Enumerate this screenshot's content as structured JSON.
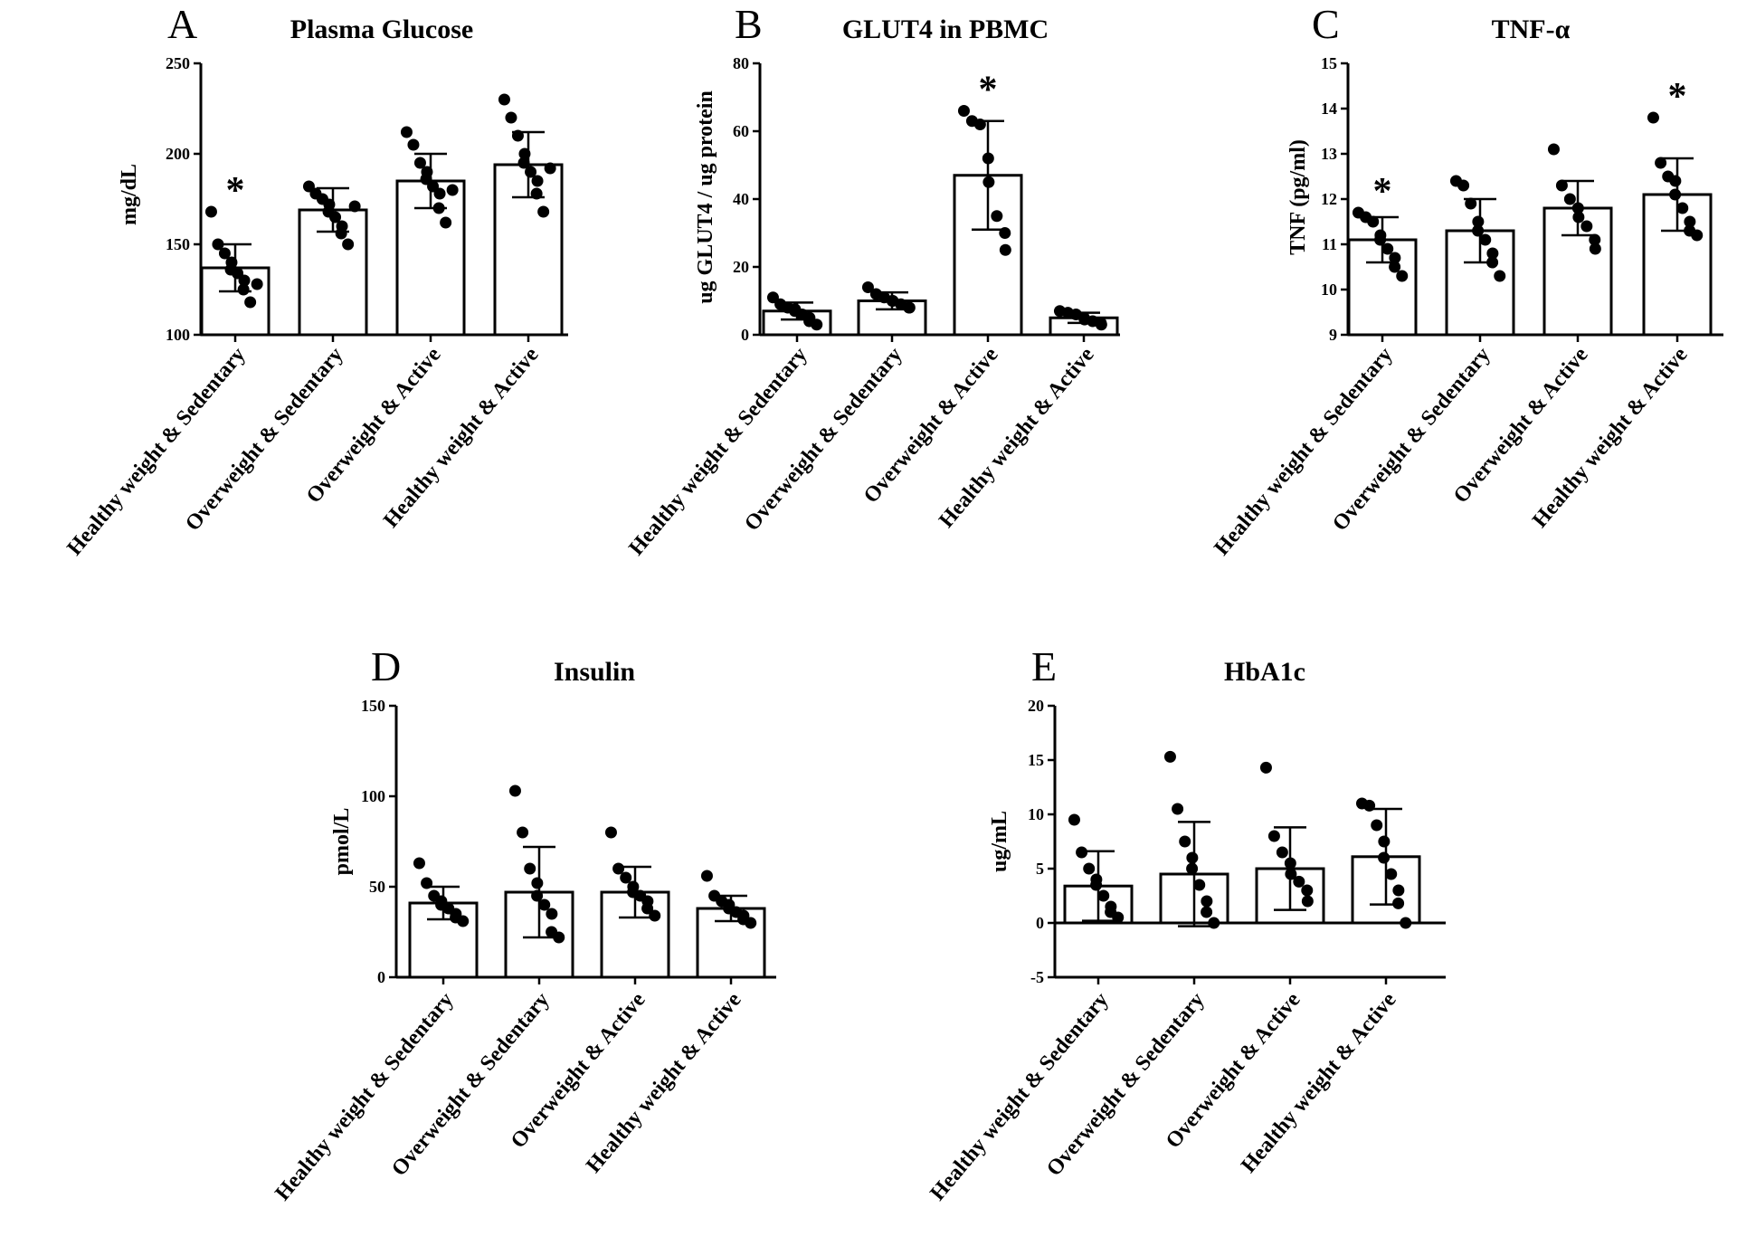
{
  "chart_data": [
    {
      "type": "bar",
      "panel": "A",
      "title": "Plasma Glucose",
      "xlabel": "",
      "ylabel": "mg/dL",
      "ylim": [
        100,
        250
      ],
      "yticks": [
        100,
        150,
        200,
        250
      ],
      "categories": [
        "Healthy weight & Sedentary",
        "Overweight & Sedentary",
        "Overweight & Active",
        "Healthy weight & Active"
      ],
      "values": [
        137,
        169,
        185,
        194
      ],
      "errors": [
        13,
        12,
        15,
        18
      ],
      "points": [
        [
          168,
          150,
          145,
          140,
          136,
          134,
          130,
          125,
          118,
          128
        ],
        [
          182,
          178,
          175,
          172,
          168,
          165,
          160,
          156,
          150,
          171
        ],
        [
          212,
          205,
          195,
          190,
          186,
          182,
          178,
          170,
          162,
          180
        ],
        [
          230,
          220,
          210,
          200,
          195,
          190,
          185,
          178,
          168,
          192
        ]
      ],
      "significance": [
        "*",
        "",
        "",
        ""
      ]
    },
    {
      "type": "bar",
      "panel": "B",
      "title": "GLUT4 in PBMC",
      "xlabel": "",
      "ylabel": "ug GLUT4 / ug protein",
      "ylim": [
        0,
        80
      ],
      "yticks": [
        0,
        20,
        40,
        60,
        80
      ],
      "categories": [
        "Healthy weight & Sedentary",
        "Overweight & Sedentary",
        "Overweight & Active",
        "Healthy weight & Active"
      ],
      "values": [
        7,
        10,
        47,
        5
      ],
      "errors": [
        2.5,
        2.5,
        16,
        1.5
      ],
      "points": [
        [
          11,
          9,
          8,
          7.5,
          7,
          6,
          5,
          4,
          3
        ],
        [
          14,
          12,
          11,
          10,
          10,
          9,
          8,
          8
        ],
        [
          66,
          63,
          62,
          52,
          45,
          35,
          30,
          25
        ],
        [
          7,
          6.5,
          6,
          5,
          4.5,
          4,
          3.5,
          3
        ]
      ],
      "significance": [
        "",
        "",
        "*",
        ""
      ]
    },
    {
      "type": "bar",
      "panel": "C",
      "title": "TNF-α",
      "xlabel": "",
      "ylabel": "TNF  (pg/ml)",
      "ylim": [
        9,
        15
      ],
      "yticks": [
        9,
        10,
        11,
        12,
        13,
        14,
        15
      ],
      "categories": [
        "Healthy weight & Sedentary",
        "Overweight & Sedentary",
        "Overweight & Active",
        "Healthy weight & Active"
      ],
      "values": [
        11.1,
        11.3,
        11.8,
        12.1
      ],
      "errors": [
        0.5,
        0.7,
        0.6,
        0.8
      ],
      "points": [
        [
          11.7,
          11.6,
          11.5,
          11.2,
          11.1,
          10.9,
          10.7,
          10.5,
          10.3
        ],
        [
          12.4,
          12.3,
          11.9,
          11.5,
          11.3,
          11.1,
          10.8,
          10.6,
          10.3
        ],
        [
          13.1,
          12.3,
          12.0,
          11.8,
          11.6,
          11.4,
          11.1,
          10.9
        ],
        [
          13.8,
          12.8,
          12.5,
          12.4,
          12.1,
          11.8,
          11.5,
          11.3,
          11.2
        ]
      ],
      "significance": [
        "*",
        "",
        "",
        "*"
      ]
    },
    {
      "type": "bar",
      "panel": "D",
      "title": "Insulin",
      "xlabel": "",
      "ylabel": "pmol/L",
      "ylim": [
        0,
        150
      ],
      "yticks": [
        0,
        50,
        100,
        150
      ],
      "categories": [
        "Healthy weight & Sedentary",
        "Overweight & Sedentary",
        "Overweight & Active",
        "Healthy weight & Active"
      ],
      "values": [
        41,
        47,
        47,
        38
      ],
      "errors": [
        9,
        25,
        14,
        7
      ],
      "points": [
        [
          63,
          52,
          45,
          42,
          40,
          38,
          35,
          33,
          31
        ],
        [
          103,
          80,
          60,
          52,
          45,
          40,
          35,
          25,
          22
        ],
        [
          80,
          60,
          55,
          50,
          47,
          45,
          42,
          38,
          34
        ],
        [
          56,
          45,
          42,
          40,
          38,
          36,
          34,
          32,
          30
        ]
      ],
      "significance": [
        "",
        "",
        "",
        ""
      ]
    },
    {
      "type": "bar",
      "panel": "E",
      "title": "HbA1c",
      "xlabel": "",
      "ylabel": "ug/mL",
      "ylim": [
        -5,
        20
      ],
      "yticks": [
        -5,
        0,
        5,
        10,
        15,
        20
      ],
      "categories": [
        "Healthy weight & Sedentary",
        "Overweight & Sedentary",
        "Overweight & Active",
        "Healthy weight & Active"
      ],
      "values": [
        3.4,
        4.5,
        5.0,
        6.1
      ],
      "errors": [
        3.2,
        4.8,
        3.8,
        4.4
      ],
      "points": [
        [
          9.5,
          6.5,
          5.0,
          4.0,
          3.5,
          2.5,
          1.5,
          1.0,
          0.5
        ],
        [
          15.3,
          10.5,
          7.5,
          6.0,
          5.0,
          3.5,
          2.0,
          1.0,
          0.0
        ],
        [
          14.3,
          8.0,
          6.5,
          5.5,
          4.5,
          3.8,
          3.0,
          2.0
        ],
        [
          11.0,
          10.8,
          9.0,
          7.5,
          6.0,
          4.5,
          3.0,
          1.8,
          0.0
        ]
      ],
      "significance": [
        "",
        "",
        "",
        ""
      ]
    }
  ]
}
